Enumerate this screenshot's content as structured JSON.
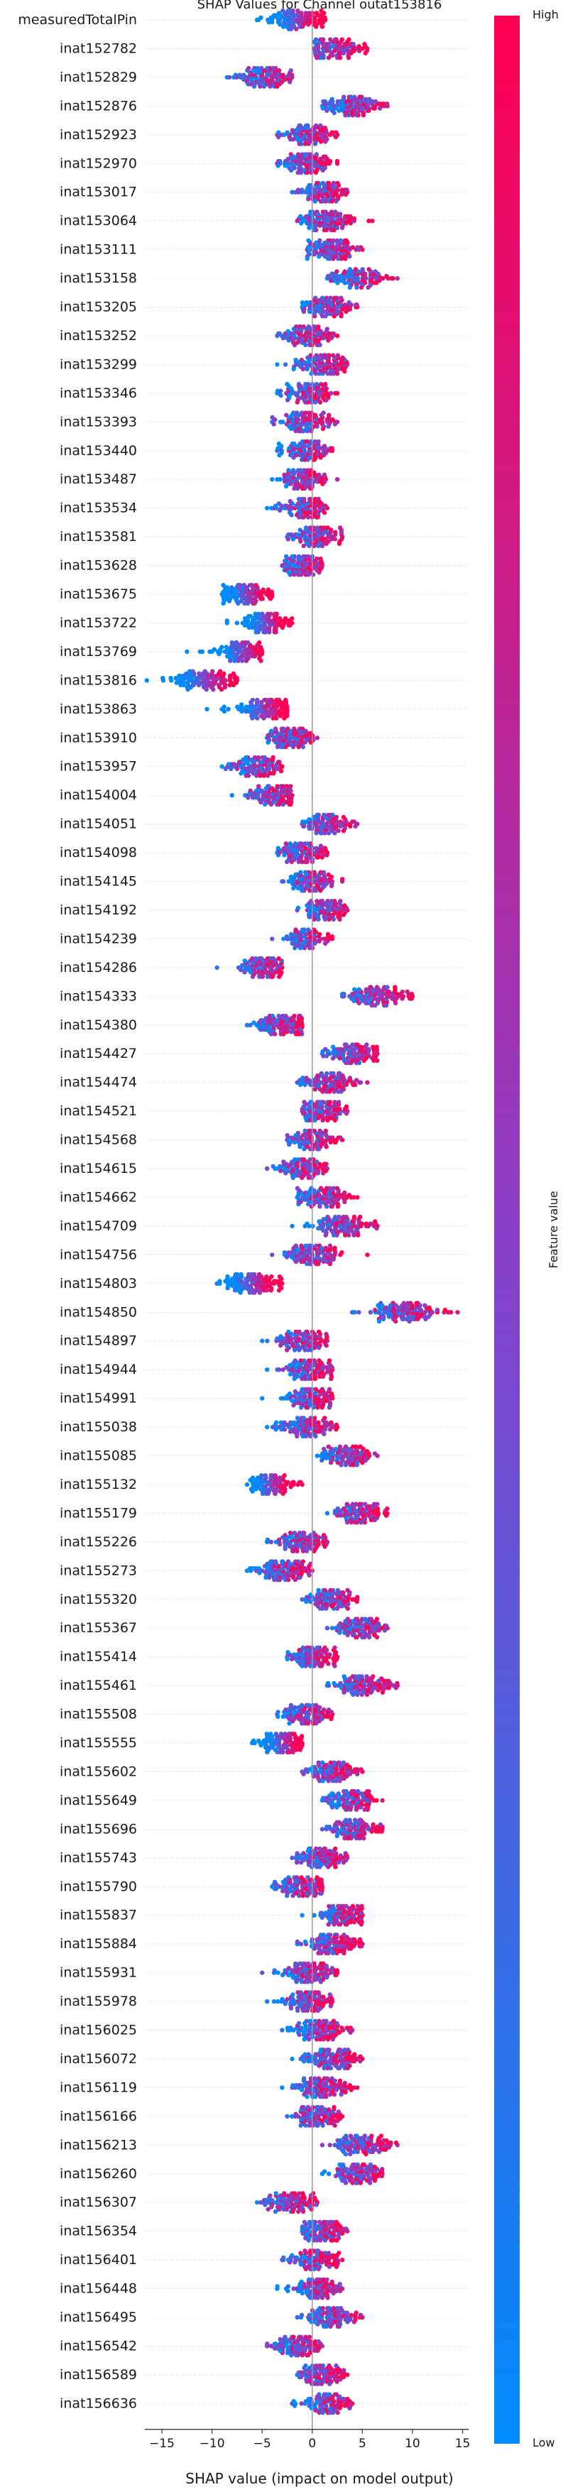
{
  "chart_data": {
    "type": "scatter",
    "subtype": "shap_beeswarm",
    "title": "SHAP Values for Channel outat153816",
    "xlabel": "SHAP value (impact on model output)",
    "xlim": [
      -16.7,
      15.6
    ],
    "xticks": [
      -15,
      -10,
      -5,
      0,
      5,
      10,
      15
    ],
    "xtick_labels": [
      "−15",
      "−10",
      "−5",
      "0",
      "5",
      "10",
      "15"
    ],
    "colorbar": {
      "label": "Feature value",
      "high_label": "High",
      "low_label": "Low",
      "high_color": "#ff0052",
      "low_color": "#008bfb"
    },
    "features": [
      {
        "name": "measuredTotalPin",
        "center": -1.5,
        "spread": 1.6,
        "min": -5.5,
        "max": 1.3,
        "trend": "high_positive"
      },
      {
        "name": "inat152782",
        "center": 2.2,
        "spread": 1.3,
        "min": 0.2,
        "max": 5.5,
        "trend": "mixed"
      },
      {
        "name": "inat152829",
        "center": -4.5,
        "spread": 1.3,
        "min": -8.5,
        "max": -2.0,
        "trend": "mixed"
      },
      {
        "name": "inat152876",
        "center": 4.0,
        "spread": 1.6,
        "min": 1.0,
        "max": 7.5,
        "trend": "mixed"
      },
      {
        "name": "inat152923",
        "center": -0.5,
        "spread": 1.2,
        "min": -3.5,
        "max": 2.5,
        "trend": "mixed"
      },
      {
        "name": "inat152970",
        "center": -0.5,
        "spread": 1.2,
        "min": -3.5,
        "max": 2.5,
        "trend": "mixed"
      },
      {
        "name": "inat153017",
        "center": 1.0,
        "spread": 1.2,
        "min": -2.0,
        "max": 3.5,
        "trend": "mixed"
      },
      {
        "name": "inat153064",
        "center": 1.5,
        "spread": 1.5,
        "min": -1.5,
        "max": 6.0,
        "trend": "mixed"
      },
      {
        "name": "inat153111",
        "center": 2.0,
        "spread": 1.3,
        "min": -0.5,
        "max": 5.0,
        "trend": "mixed"
      },
      {
        "name": "inat153158",
        "center": 4.5,
        "spread": 1.6,
        "min": 1.5,
        "max": 8.5,
        "trend": "mixed"
      },
      {
        "name": "inat153205",
        "center": 1.5,
        "spread": 1.3,
        "min": -1.0,
        "max": 4.5,
        "trend": "mixed"
      },
      {
        "name": "inat153252",
        "center": -0.5,
        "spread": 1.2,
        "min": -3.5,
        "max": 2.5,
        "trend": "mixed"
      },
      {
        "name": "inat153299",
        "center": 1.0,
        "spread": 1.3,
        "min": -3.5,
        "max": 3.5,
        "trend": "mixed"
      },
      {
        "name": "inat153346",
        "center": -0.5,
        "spread": 1.3,
        "min": -3.5,
        "max": 2.5,
        "trend": "mixed"
      },
      {
        "name": "inat153393",
        "center": -0.5,
        "spread": 1.3,
        "min": -4.0,
        "max": 2.5,
        "trend": "mixed"
      },
      {
        "name": "inat153440",
        "center": -0.5,
        "spread": 1.2,
        "min": -3.5,
        "max": 2.0,
        "trend": "mixed"
      },
      {
        "name": "inat153487",
        "center": -1.0,
        "spread": 1.2,
        "min": -4.0,
        "max": 2.5,
        "trend": "mixed"
      },
      {
        "name": "inat153534",
        "center": -1.0,
        "spread": 1.2,
        "min": -4.5,
        "max": 1.5,
        "trend": "mixed"
      },
      {
        "name": "inat153581",
        "center": 0.5,
        "spread": 1.2,
        "min": -2.5,
        "max": 3.0,
        "trend": "mixed"
      },
      {
        "name": "inat153628",
        "center": -1.0,
        "spread": 1.0,
        "min": -3.0,
        "max": 1.0,
        "trend": "mixed"
      },
      {
        "name": "inat153675",
        "center": -6.5,
        "spread": 1.4,
        "min": -9.0,
        "max": -4.0,
        "trend": "high_positive"
      },
      {
        "name": "inat153722",
        "center": -4.5,
        "spread": 1.3,
        "min": -8.5,
        "max": -2.0,
        "trend": "high_positive"
      },
      {
        "name": "inat153769",
        "center": -7.0,
        "spread": 1.5,
        "min": -12.5,
        "max": -5.0,
        "trend": "high_positive"
      },
      {
        "name": "inat153816",
        "center": -10.5,
        "spread": 1.8,
        "min": -16.5,
        "max": -7.5,
        "trend": "high_positive"
      },
      {
        "name": "inat153863",
        "center": -5.0,
        "spread": 1.5,
        "min": -10.5,
        "max": -2.5,
        "trend": "high_positive"
      },
      {
        "name": "inat153910",
        "center": -2.0,
        "spread": 1.2,
        "min": -4.5,
        "max": 0.5,
        "trend": "mixed"
      },
      {
        "name": "inat153957",
        "center": -5.5,
        "spread": 1.3,
        "min": -9.0,
        "max": -3.0,
        "trend": "mixed"
      },
      {
        "name": "inat154004",
        "center": -4.0,
        "spread": 1.2,
        "min": -8.0,
        "max": -2.0,
        "trend": "mixed"
      },
      {
        "name": "inat154051",
        "center": 1.5,
        "spread": 1.3,
        "min": -1.0,
        "max": 4.5,
        "trend": "mixed"
      },
      {
        "name": "inat154098",
        "center": -1.0,
        "spread": 1.2,
        "min": -3.5,
        "max": 1.5,
        "trend": "mixed"
      },
      {
        "name": "inat154145",
        "center": 0.0,
        "spread": 1.2,
        "min": -3.0,
        "max": 3.0,
        "trend": "mixed"
      },
      {
        "name": "inat154192",
        "center": 1.5,
        "spread": 1.0,
        "min": -1.5,
        "max": 3.5,
        "trend": "mixed"
      },
      {
        "name": "inat154239",
        "center": -0.5,
        "spread": 1.0,
        "min": -4.0,
        "max": 2.0,
        "trend": "mixed"
      },
      {
        "name": "inat154286",
        "center": -5.0,
        "spread": 1.2,
        "min": -9.5,
        "max": -3.0,
        "trend": "mixed"
      },
      {
        "name": "inat154333",
        "center": 6.5,
        "spread": 1.6,
        "min": 3.0,
        "max": 10.0,
        "trend": "mixed"
      },
      {
        "name": "inat154380",
        "center": -3.0,
        "spread": 1.2,
        "min": -6.5,
        "max": -1.0,
        "trend": "mixed"
      },
      {
        "name": "inat154427",
        "center": 4.0,
        "spread": 1.3,
        "min": 1.0,
        "max": 6.5,
        "trend": "mixed"
      },
      {
        "name": "inat154474",
        "center": 1.5,
        "spread": 1.3,
        "min": -1.5,
        "max": 5.5,
        "trend": "mixed"
      },
      {
        "name": "inat154521",
        "center": 1.0,
        "spread": 1.2,
        "min": -1.0,
        "max": 3.5,
        "trend": "mixed"
      },
      {
        "name": "inat154568",
        "center": 0.0,
        "spread": 1.2,
        "min": -2.5,
        "max": 3.0,
        "trend": "mixed"
      },
      {
        "name": "inat154615",
        "center": -1.0,
        "spread": 1.2,
        "min": -4.5,
        "max": 1.5,
        "trend": "mixed"
      },
      {
        "name": "inat154662",
        "center": 1.0,
        "spread": 1.3,
        "min": -1.5,
        "max": 4.5,
        "trend": "mixed"
      },
      {
        "name": "inat154709",
        "center": 3.0,
        "spread": 1.5,
        "min": -2.0,
        "max": 6.5,
        "trend": "mixed"
      },
      {
        "name": "inat154756",
        "center": 0.0,
        "spread": 1.3,
        "min": -4.0,
        "max": 5.5,
        "trend": "mixed"
      },
      {
        "name": "inat154803",
        "center": -6.0,
        "spread": 1.5,
        "min": -9.5,
        "max": -3.0,
        "trend": "high_positive"
      },
      {
        "name": "inat154850",
        "center": 9.0,
        "spread": 1.8,
        "min": 4.0,
        "max": 14.5,
        "trend": "mixed"
      },
      {
        "name": "inat154897",
        "center": -1.0,
        "spread": 1.2,
        "min": -5.0,
        "max": 1.5,
        "trend": "mixed"
      },
      {
        "name": "inat154944",
        "center": -0.5,
        "spread": 1.2,
        "min": -4.5,
        "max": 2.0,
        "trend": "mixed"
      },
      {
        "name": "inat154991",
        "center": 0.0,
        "spread": 1.2,
        "min": -5.0,
        "max": 2.0,
        "trend": "mixed"
      },
      {
        "name": "inat155038",
        "center": -0.5,
        "spread": 1.3,
        "min": -4.5,
        "max": 2.5,
        "trend": "mixed"
      },
      {
        "name": "inat155085",
        "center": 3.5,
        "spread": 1.3,
        "min": 0.5,
        "max": 6.5,
        "trend": "mixed"
      },
      {
        "name": "inat155132",
        "center": -4.0,
        "spread": 1.2,
        "min": -6.5,
        "max": -1.0,
        "trend": "high_positive"
      },
      {
        "name": "inat155179",
        "center": 4.5,
        "spread": 1.3,
        "min": 1.5,
        "max": 7.5,
        "trend": "mixed"
      },
      {
        "name": "inat155226",
        "center": -1.0,
        "spread": 1.3,
        "min": -4.5,
        "max": 1.5,
        "trend": "mixed"
      },
      {
        "name": "inat155273",
        "center": -3.0,
        "spread": 1.3,
        "min": -6.5,
        "max": 0.0,
        "trend": "mixed"
      },
      {
        "name": "inat155320",
        "center": 2.0,
        "spread": 1.2,
        "min": -1.0,
        "max": 4.5,
        "trend": "mixed"
      },
      {
        "name": "inat155367",
        "center": 5.0,
        "spread": 1.3,
        "min": 1.5,
        "max": 7.5,
        "trend": "mixed"
      },
      {
        "name": "inat155414",
        "center": 0.0,
        "spread": 1.2,
        "min": -2.5,
        "max": 2.5,
        "trend": "mixed"
      },
      {
        "name": "inat155461",
        "center": 5.0,
        "spread": 1.5,
        "min": 1.5,
        "max": 8.5,
        "trend": "mixed"
      },
      {
        "name": "inat155508",
        "center": -0.5,
        "spread": 1.2,
        "min": -3.5,
        "max": 2.0,
        "trend": "mixed"
      },
      {
        "name": "inat155555",
        "center": -3.0,
        "spread": 1.2,
        "min": -6.0,
        "max": -1.0,
        "trend": "high_positive"
      },
      {
        "name": "inat155602",
        "center": 2.0,
        "spread": 1.3,
        "min": -1.0,
        "max": 5.0,
        "trend": "mixed"
      },
      {
        "name": "inat155649",
        "center": 4.0,
        "spread": 1.3,
        "min": 1.0,
        "max": 7.0,
        "trend": "mixed"
      },
      {
        "name": "inat155696",
        "center": 4.0,
        "spread": 1.3,
        "min": 1.0,
        "max": 7.0,
        "trend": "mixed"
      },
      {
        "name": "inat155743",
        "center": 1.0,
        "spread": 1.2,
        "min": -2.0,
        "max": 3.5,
        "trend": "mixed"
      },
      {
        "name": "inat155790",
        "center": -1.0,
        "spread": 1.2,
        "min": -4.0,
        "max": 1.0,
        "trend": "mixed"
      },
      {
        "name": "inat155837",
        "center": 3.0,
        "spread": 1.2,
        "min": -1.0,
        "max": 5.0,
        "trend": "mixed"
      },
      {
        "name": "inat155884",
        "center": 2.0,
        "spread": 1.3,
        "min": -1.5,
        "max": 5.0,
        "trend": "mixed"
      },
      {
        "name": "inat155931",
        "center": -0.5,
        "spread": 1.3,
        "min": -5.0,
        "max": 2.5,
        "trend": "mixed"
      },
      {
        "name": "inat155978",
        "center": -0.5,
        "spread": 1.2,
        "min": -4.5,
        "max": 2.0,
        "trend": "mixed"
      },
      {
        "name": "inat156025",
        "center": 0.5,
        "spread": 1.3,
        "min": -3.0,
        "max": 4.0,
        "trend": "mixed"
      },
      {
        "name": "inat156072",
        "center": 2.0,
        "spread": 1.3,
        "min": -2.0,
        "max": 5.0,
        "trend": "mixed"
      },
      {
        "name": "inat156119",
        "center": 1.0,
        "spread": 1.3,
        "min": -3.0,
        "max": 4.5,
        "trend": "mixed"
      },
      {
        "name": "inat156166",
        "center": 0.5,
        "spread": 1.2,
        "min": -2.5,
        "max": 3.0,
        "trend": "mixed"
      },
      {
        "name": "inat156213",
        "center": 5.0,
        "spread": 1.5,
        "min": 1.0,
        "max": 8.5,
        "trend": "mixed"
      },
      {
        "name": "inat156260",
        "center": 4.5,
        "spread": 1.3,
        "min": 1.0,
        "max": 7.0,
        "trend": "mixed"
      },
      {
        "name": "inat156307",
        "center": -2.0,
        "spread": 1.3,
        "min": -5.5,
        "max": 0.5,
        "trend": "mixed"
      },
      {
        "name": "inat156354",
        "center": 1.0,
        "spread": 1.2,
        "min": -1.0,
        "max": 3.5,
        "trend": "mixed"
      },
      {
        "name": "inat156401",
        "center": 0.0,
        "spread": 1.2,
        "min": -3.0,
        "max": 3.0,
        "trend": "mixed"
      },
      {
        "name": "inat156448",
        "center": 0.5,
        "spread": 1.2,
        "min": -3.5,
        "max": 3.0,
        "trend": "mixed"
      },
      {
        "name": "inat156495",
        "center": 2.0,
        "spread": 1.3,
        "min": -1.5,
        "max": 5.0,
        "trend": "mixed"
      },
      {
        "name": "inat156542",
        "center": -1.5,
        "spread": 1.2,
        "min": -4.5,
        "max": 1.0,
        "trend": "mixed"
      },
      {
        "name": "inat156589",
        "center": 1.0,
        "spread": 1.2,
        "min": -1.5,
        "max": 3.5,
        "trend": "mixed"
      },
      {
        "name": "inat156636",
        "center": 1.5,
        "spread": 1.2,
        "min": -2.0,
        "max": 4.0,
        "trend": "mixed"
      }
    ]
  }
}
